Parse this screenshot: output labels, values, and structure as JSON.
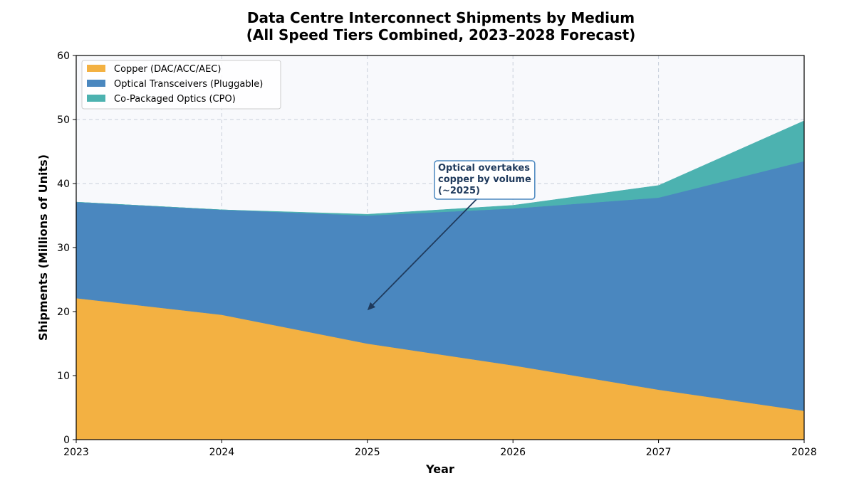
{
  "chart_data": {
    "type": "area",
    "stacked": true,
    "title_lines": [
      "Data Centre Interconnect Shipments by Medium",
      "(All Speed Tiers Combined, 2023–2028 Forecast)"
    ],
    "xlabel": "Year",
    "ylabel": "Shipments (Millions of Units)",
    "x": [
      2023,
      2024,
      2025,
      2026,
      2027,
      2028
    ],
    "xlim": [
      2023,
      2028
    ],
    "ylim": [
      0,
      60
    ],
    "yticks": [
      0,
      10,
      20,
      30,
      40,
      50,
      60
    ],
    "grid": true,
    "legend_position": "top-left",
    "series": [
      {
        "name": "Copper (DAC/ACC/AEC)",
        "color": "#f3b142",
        "values": [
          22.1,
          19.5,
          15.0,
          11.6,
          7.8,
          4.5
        ]
      },
      {
        "name": "Optical Transceivers (Pluggable)",
        "color": "#4a87bf",
        "values": [
          15.0,
          16.4,
          20.0,
          24.5,
          30.0,
          39.0
        ]
      },
      {
        "name": "Co-Packaged Optics (CPO)",
        "color": "#4cb2b0",
        "values": [
          0.0,
          0.0,
          0.2,
          0.5,
          1.9,
          6.3
        ]
      }
    ],
    "annotation": {
      "lines": [
        "Optical overtakes",
        "copper by volume",
        "(~2025)"
      ],
      "text_x": 2025.5,
      "text_y": 38,
      "arrow_x": 2025,
      "arrow_y": 20.2
    }
  }
}
